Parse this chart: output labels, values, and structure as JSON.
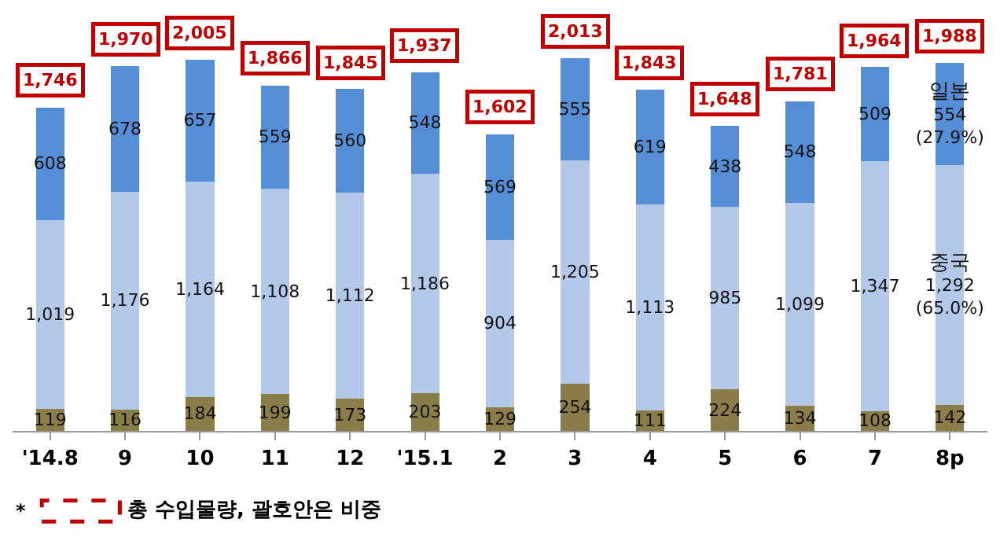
{
  "chart_data": {
    "type": "bar",
    "stacked": true,
    "categories": [
      "'14.8",
      "9",
      "10",
      "11",
      "12",
      "'15.1",
      "2",
      "3",
      "4",
      "5",
      "6",
      "7",
      "8p"
    ],
    "series": [
      {
        "color": "#8b7d4a",
        "values": [
          119,
          116,
          184,
          199,
          173,
          203,
          129,
          254,
          111,
          224,
          134,
          108,
          142
        ]
      },
      {
        "name": "중국",
        "color": "#b4c8ea",
        "values": [
          1019,
          1176,
          1164,
          1108,
          1112,
          1186,
          904,
          1205,
          1113,
          985,
          1099,
          1347,
          1292
        ],
        "value_labels": [
          "1,019",
          "1,176",
          "1,164",
          "1,108",
          "1,112",
          "1,186",
          "904",
          "1,205",
          "1,113",
          "985",
          "1,099",
          "1,347",
          "1,292\n(65.0%)"
        ]
      },
      {
        "name": "일본",
        "color": "#558ed5",
        "values": [
          608,
          678,
          657,
          559,
          560,
          548,
          569,
          555,
          619,
          438,
          548,
          509,
          554
        ],
        "value_labels": [
          "608",
          "678",
          "657",
          "559",
          "560",
          "548",
          "569",
          "555",
          "619",
          "438",
          "548",
          "509",
          "554\n(27.9%)"
        ]
      }
    ],
    "data_labels": true,
    "totals": [
      "1,746",
      "1,970",
      "2,005",
      "1,866",
      "1,845",
      "1,937",
      "1,602",
      "2,013",
      "1,843",
      "1,648",
      "1,781",
      "1,964",
      "1,988"
    ],
    "annotations": [
      "*",
      "총 수입물량, 괄호안은 비중"
    ],
    "tick_labels": "x"
  }
}
